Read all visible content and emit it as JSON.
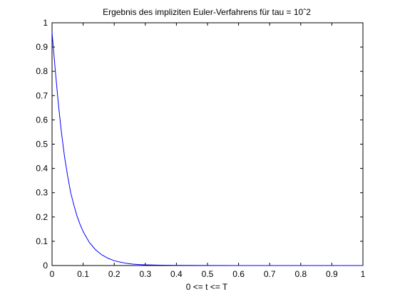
{
  "chart_data": {
    "type": "line",
    "title": "Ergebnis des impliziten Euler-Verfahrens für tau = 10ˆ2",
    "xlabel": "0 <= t <= T",
    "ylabel": "",
    "xlim": [
      0,
      1
    ],
    "ylim": [
      0,
      1
    ],
    "xticks": [
      0,
      0.1,
      0.2,
      0.3,
      0.4,
      0.5,
      0.6,
      0.7,
      0.8,
      0.9,
      1
    ],
    "xtick_labels": [
      "0",
      "0.1",
      "0.2",
      "0.3",
      "0.4",
      "0.5",
      "0.6",
      "0.7",
      "0.8",
      "0.9",
      "1"
    ],
    "yticks": [
      0,
      0.1,
      0.2,
      0.3,
      0.4,
      0.5,
      0.6,
      0.7,
      0.8,
      0.9,
      1
    ],
    "ytick_labels": [
      "0",
      "0.1",
      "0.2",
      "0.3",
      "0.4",
      "0.5",
      "0.6",
      "0.7",
      "0.8",
      "0.9",
      "1"
    ],
    "grid": false,
    "series": [
      {
        "color": "#0000ff",
        "x": [
          0,
          0.01,
          0.02,
          0.03,
          0.04,
          0.05,
          0.06,
          0.07,
          0.08,
          0.09,
          0.1,
          0.12,
          0.14,
          0.16,
          0.18,
          0.2,
          0.22,
          0.24,
          0.26,
          0.28,
          0.3,
          0.35,
          0.4,
          0.5,
          0.6,
          0.7,
          0.8,
          0.9,
          1.0
        ],
        "y": [
          0.96,
          0.81,
          0.67,
          0.55,
          0.45,
          0.37,
          0.3,
          0.25,
          0.205,
          0.17,
          0.14,
          0.095,
          0.065,
          0.044,
          0.03,
          0.02,
          0.014,
          0.009,
          0.006,
          0.004,
          0.003,
          0.0015,
          0.0008,
          0.0002,
          0.0001,
          0.0,
          0.0,
          0.0,
          0.0
        ]
      }
    ]
  }
}
